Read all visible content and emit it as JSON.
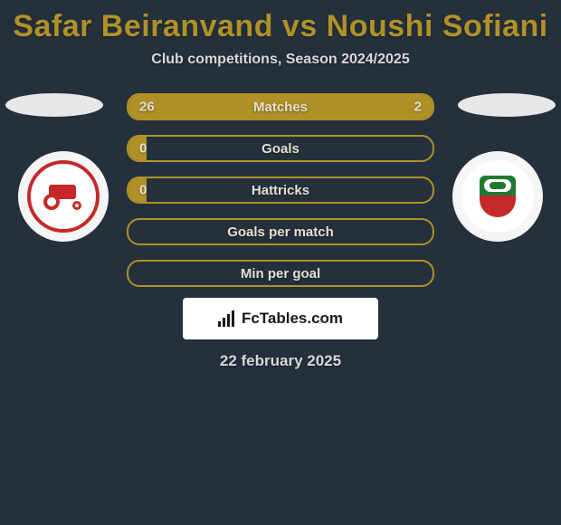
{
  "title": "Safar Beiranvand vs Noushi Sofiani",
  "subtitle": "Club competitions, Season 2024/2025",
  "date": "22 february 2025",
  "brand": "FcTables.com",
  "colors": {
    "accent": "#b09127",
    "bg": "#24303c",
    "text_light": "#e5e0d2"
  },
  "left_badge": {
    "name": "tractor-club-badge",
    "primary": "#c62828"
  },
  "right_badge": {
    "name": "zob-ahan-badge",
    "primary": "#1e7a33",
    "secondary": "#c62828"
  },
  "stats": [
    {
      "label": "Matches",
      "left_val": "26",
      "right_val": "2",
      "left_pct": 86,
      "right_pct": 14
    },
    {
      "label": "Goals",
      "left_val": "0",
      "right_val": "",
      "left_pct": 6,
      "right_pct": 0
    },
    {
      "label": "Hattricks",
      "left_val": "0",
      "right_val": "",
      "left_pct": 6,
      "right_pct": 0
    },
    {
      "label": "Goals per match",
      "left_val": "",
      "right_val": "",
      "left_pct": 0,
      "right_pct": 0
    },
    {
      "label": "Min per goal",
      "left_val": "",
      "right_val": "",
      "left_pct": 0,
      "right_pct": 0
    }
  ]
}
